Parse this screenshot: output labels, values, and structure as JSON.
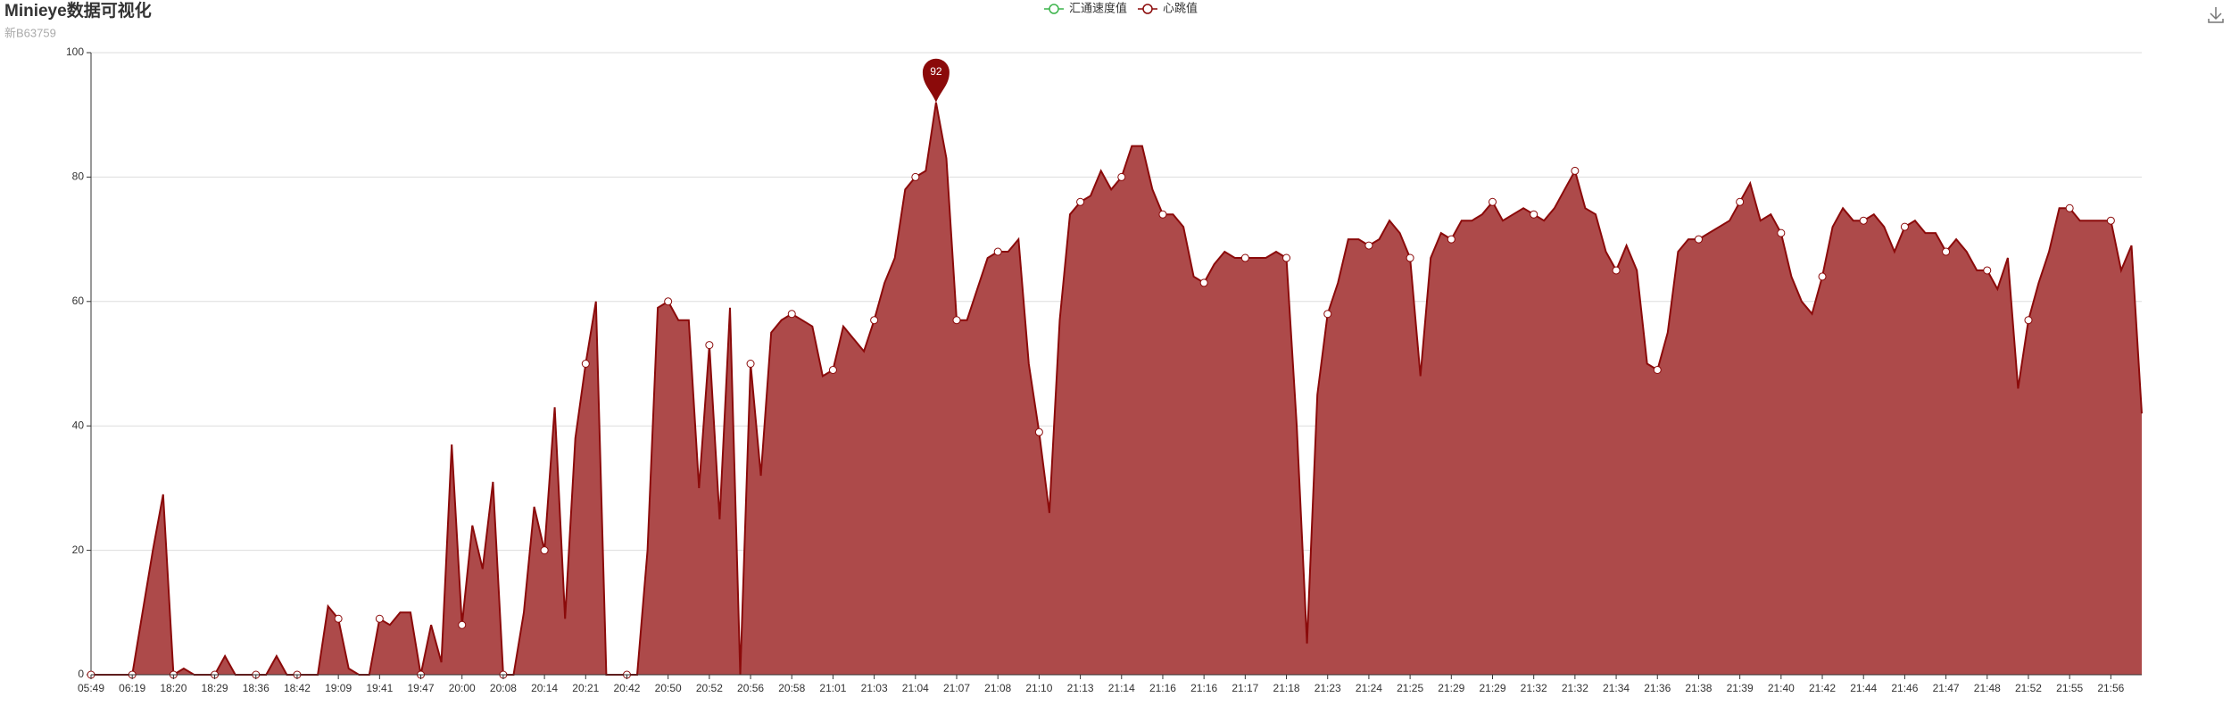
{
  "header": {
    "title": "Minieye数据可视化",
    "subtitle": "新B63759"
  },
  "chart_data": {
    "type": "line",
    "area": true,
    "grid": true,
    "categories": [
      "05:49",
      null,
      null,
      null,
      "06:19",
      null,
      null,
      null,
      "18:20",
      null,
      null,
      null,
      "18:29",
      null,
      null,
      null,
      "18:36",
      null,
      null,
      null,
      "18:42",
      null,
      null,
      null,
      "19:09",
      null,
      null,
      null,
      "19:41",
      null,
      null,
      null,
      "19:47",
      null,
      null,
      null,
      "20:00",
      null,
      null,
      null,
      "20:08",
      null,
      null,
      null,
      "20:14",
      null,
      null,
      null,
      "20:21",
      null,
      null,
      null,
      "20:42",
      null,
      null,
      null,
      "20:50",
      null,
      null,
      null,
      "20:52",
      null,
      null,
      null,
      "20:56",
      null,
      null,
      null,
      "20:58",
      null,
      null,
      null,
      "21:01",
      null,
      null,
      null,
      "21:03",
      null,
      null,
      null,
      "21:04",
      null,
      null,
      null,
      "21:07",
      null,
      null,
      null,
      "21:08",
      null,
      null,
      null,
      "21:10",
      null,
      null,
      null,
      "21:13",
      null,
      null,
      null,
      "21:14",
      null,
      null,
      null,
      "21:16",
      null,
      null,
      null,
      "21:16",
      null,
      null,
      null,
      "21:17",
      null,
      null,
      null,
      "21:18",
      null,
      null,
      null,
      "21:23",
      null,
      null,
      null,
      "21:24",
      null,
      null,
      null,
      "21:25",
      null,
      null,
      null,
      "21:29",
      null,
      null,
      null,
      "21:29",
      null,
      null,
      null,
      "21:32",
      null,
      null,
      null,
      "21:32",
      null,
      null,
      null,
      "21:34",
      null,
      null,
      null,
      "21:36",
      null,
      null,
      null,
      "21:38",
      null,
      null,
      null,
      "21:39",
      null,
      null,
      null,
      "21:40",
      null,
      null,
      null,
      "21:42",
      null,
      null,
      null,
      "21:44",
      null,
      null,
      null,
      "21:46",
      null,
      null,
      null,
      "21:47",
      null,
      null,
      null,
      "21:48",
      null,
      null,
      null,
      "21:52",
      null,
      null,
      null,
      "21:55",
      null,
      null,
      null,
      "21:56",
      null,
      null,
      null
    ],
    "series": [
      {
        "name": "心跳值",
        "color": "#8b0a0a",
        "fill": "#ad4a4a",
        "values": [
          0,
          0,
          0,
          0,
          0,
          10,
          20,
          29,
          0,
          1,
          0,
          0,
          0,
          3,
          0,
          0,
          0,
          0,
          3,
          0,
          0,
          0,
          0,
          11,
          9,
          1,
          0,
          0,
          9,
          8,
          10,
          10,
          0,
          8,
          2,
          37,
          8,
          24,
          17,
          31,
          0,
          0,
          10,
          27,
          20,
          43,
          9,
          38,
          50,
          60,
          0,
          0,
          0,
          0,
          20,
          59,
          60,
          57,
          57,
          30,
          53,
          25,
          59,
          0,
          50,
          32,
          55,
          57,
          58,
          57,
          56,
          48,
          49,
          56,
          54,
          52,
          57,
          63,
          67,
          78,
          80,
          81,
          92,
          83,
          57,
          57,
          62,
          67,
          68,
          68,
          70,
          50,
          39,
          26,
          57,
          74,
          76,
          77,
          81,
          78,
          80,
          85,
          85,
          78,
          74,
          74,
          72,
          64,
          63,
          66,
          68,
          67,
          67,
          67,
          67,
          68,
          67,
          40,
          5,
          45,
          58,
          63,
          70,
          70,
          69,
          70,
          73,
          71,
          67,
          48,
          67,
          71,
          70,
          73,
          73,
          74,
          76,
          73,
          74,
          75,
          74,
          73,
          75,
          78,
          81,
          75,
          74,
          68,
          65,
          69,
          65,
          50,
          49,
          55,
          68,
          70,
          70,
          71,
          72,
          73,
          76,
          79,
          73,
          74,
          71,
          64,
          60,
          58,
          64,
          72,
          75,
          73,
          73,
          74,
          72,
          68,
          72,
          73,
          71,
          71,
          68,
          70,
          68,
          65,
          65,
          62,
          67,
          46,
          57,
          63,
          68,
          75,
          75,
          73,
          73,
          73,
          73,
          65,
          69,
          42
        ]
      }
    ],
    "hidden_series": [
      {
        "name": "汇通速度值",
        "color": "#3cb44b"
      }
    ],
    "ylim": [
      0,
      100
    ],
    "yticks": [
      0,
      20,
      40,
      60,
      80,
      100
    ]
  }
}
